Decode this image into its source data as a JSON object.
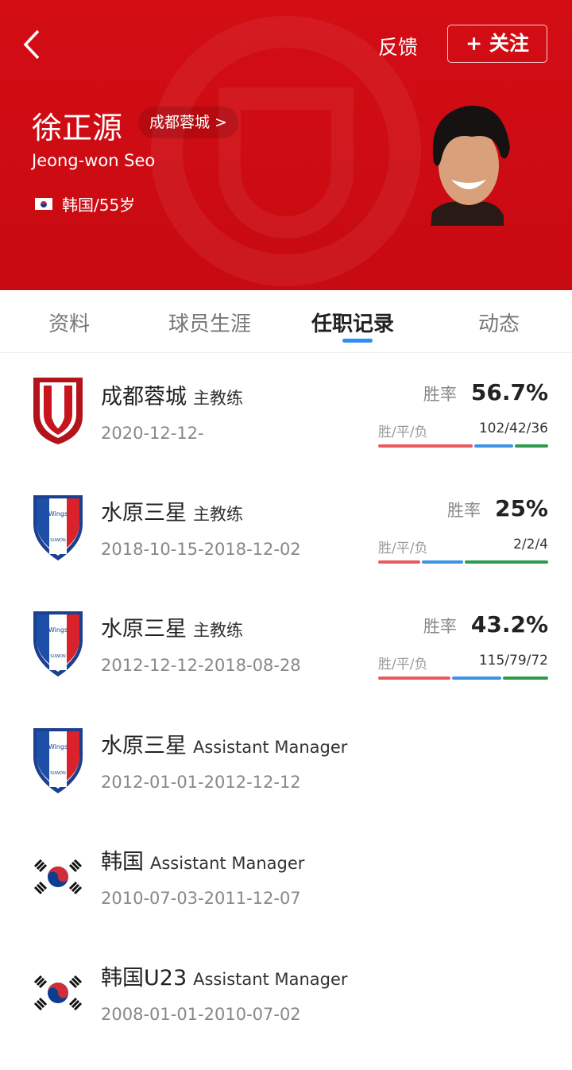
{
  "header": {
    "back_icon": "chevron-left-icon",
    "feedback": "反馈",
    "follow": "+ 关注",
    "name": "徐正源",
    "team": "成都蓉城 >",
    "english_name": "Jeong-won Seo",
    "nationality": "韩国/55岁",
    "watermark": "CHENGDU RONGCHENG FC"
  },
  "tabs": [
    {
      "label": "资料"
    },
    {
      "label": "球员生涯"
    },
    {
      "label": "任职记录",
      "active": true
    },
    {
      "label": "动态"
    }
  ],
  "colors": {
    "win": "#e85a5e",
    "draw": "#3d93e6",
    "loss": "#2e9a4e",
    "brand": "#cf0c13"
  },
  "records": [
    {
      "team": "成都蓉城",
      "role": "主教练",
      "dates": "2020-12-12-",
      "logo": "chengdu",
      "rate_label": "胜率",
      "rate": "56.7%",
      "wdl_label": "胜/平/负",
      "wdl": "102/42/36",
      "w": 102,
      "d": 42,
      "l": 36
    },
    {
      "team": "水原三星",
      "role": "主教练",
      "dates": "2018-10-15-2018-12-02",
      "logo": "suwon",
      "rate_label": "胜率",
      "rate": "25%",
      "wdl_label": "胜/平/负",
      "wdl": "2/2/4",
      "w": 2,
      "d": 2,
      "l": 4
    },
    {
      "team": "水原三星",
      "role": "主教练",
      "dates": "2012-12-12-2018-08-28",
      "logo": "suwon",
      "rate_label": "胜率",
      "rate": "43.2%",
      "wdl_label": "胜/平/负",
      "wdl": "115/79/72",
      "w": 115,
      "d": 79,
      "l": 72
    },
    {
      "team": "水原三星",
      "role": "Assistant Manager",
      "dates": "2012-01-01-2012-12-12",
      "logo": "suwon"
    },
    {
      "team": "韩国",
      "role": "Assistant Manager",
      "dates": "2010-07-03-2011-12-07",
      "logo": "korea"
    },
    {
      "team": "韩国U23",
      "role": "Assistant Manager",
      "dates": "2008-01-01-2010-07-02",
      "logo": "korea"
    }
  ]
}
